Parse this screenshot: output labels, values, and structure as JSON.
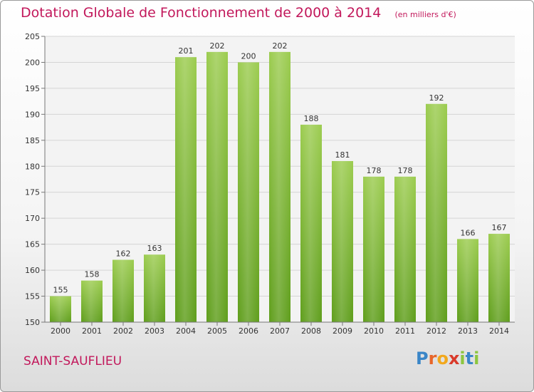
{
  "title": "Dotation Globale de Fonctionnement de 2000 à 2014",
  "unit": "(en milliers d'€)",
  "commune": "SAINT-SAUFLIEU",
  "logo": {
    "letters": [
      "P",
      "r",
      "o",
      "x",
      "i",
      "t",
      "i"
    ],
    "colors": [
      "#3a86c8",
      "#e8662a",
      "#f2a81d",
      "#d93a2b",
      "#8cc63f",
      "#3a86c8",
      "#8cc63f"
    ]
  },
  "colors": {
    "bar": "#7cba34",
    "title": "#c2185b"
  },
  "chart_data": {
    "type": "bar",
    "categories": [
      "2000",
      "2001",
      "2002",
      "2003",
      "2004",
      "2005",
      "2006",
      "2007",
      "2008",
      "2009",
      "2010",
      "2011",
      "2012",
      "2013",
      "2014"
    ],
    "values": [
      155,
      158,
      162,
      163,
      201,
      202,
      200,
      202,
      188,
      181,
      178,
      178,
      192,
      166,
      167
    ],
    "ylim": [
      150,
      205
    ],
    "yticks": [
      150,
      155,
      160,
      165,
      170,
      175,
      180,
      185,
      190,
      195,
      200,
      205
    ],
    "grid": true,
    "data_labels": true
  }
}
